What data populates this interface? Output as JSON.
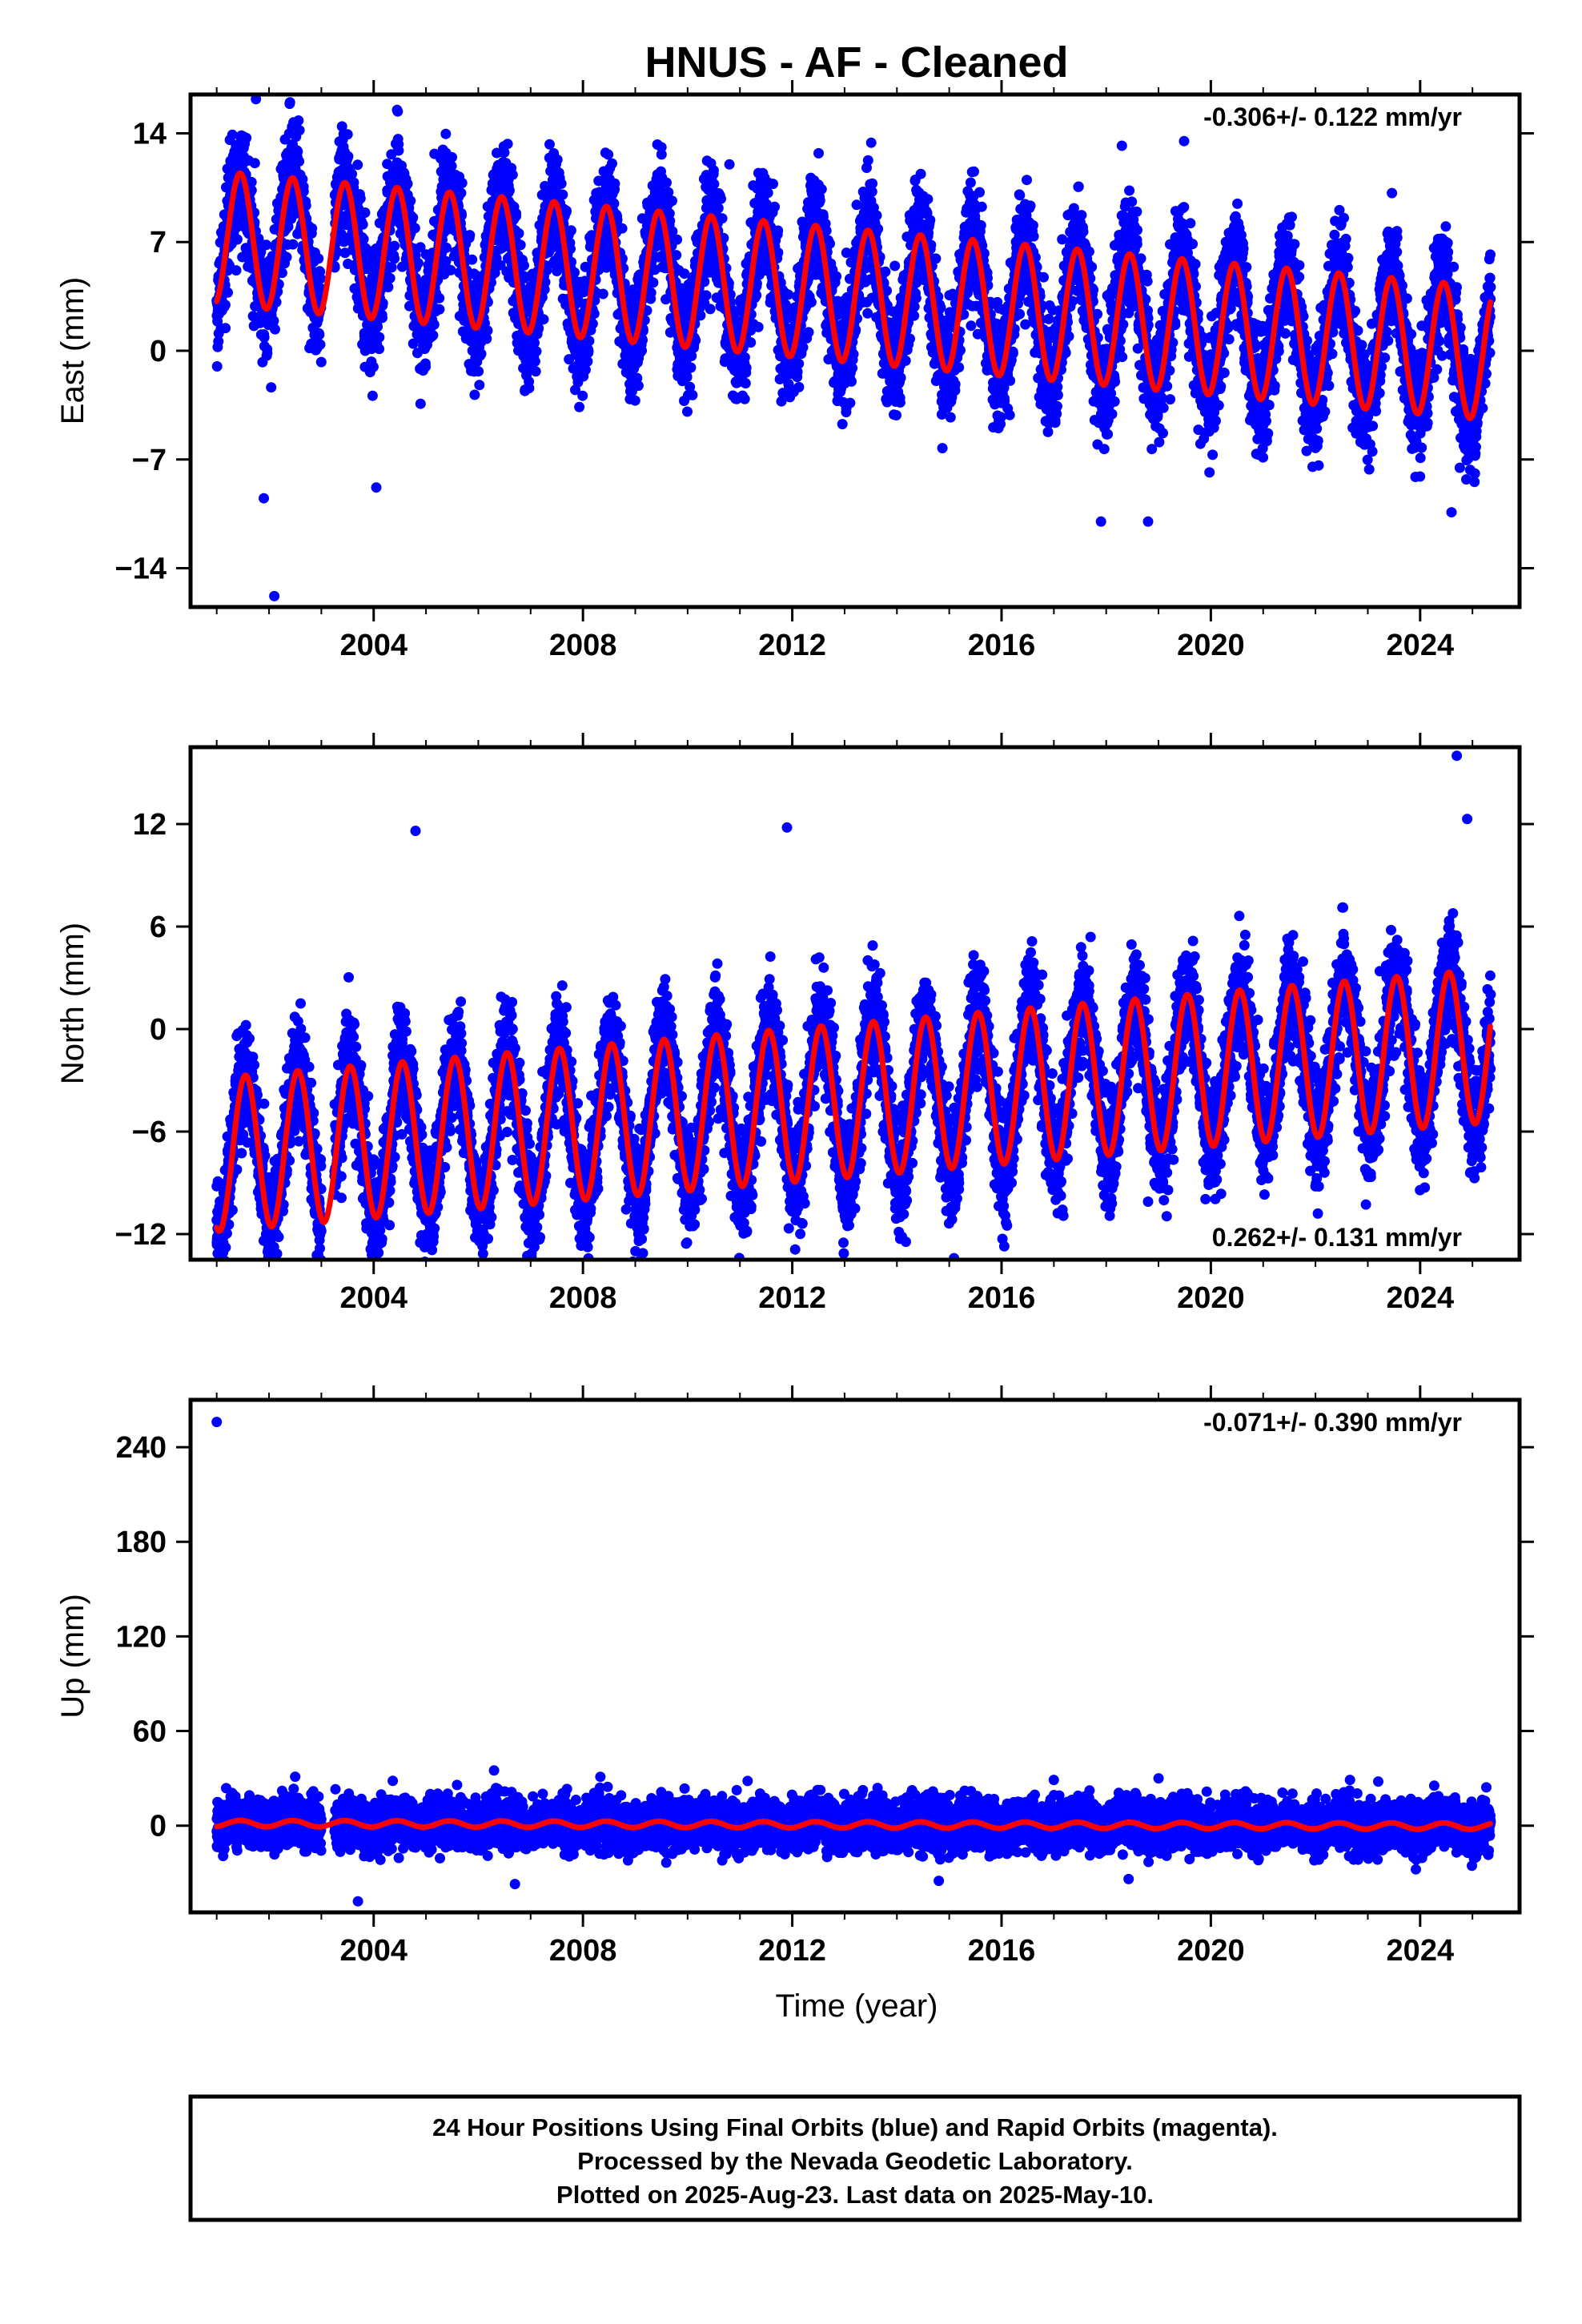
{
  "title": "HNUS  - AF - Cleaned",
  "colors": {
    "data_points": "#0000ff",
    "model": "#ff0000",
    "frame": "#000000"
  },
  "chart_data": [
    {
      "type": "scatter",
      "panel": "east",
      "ylabel": "East (mm)",
      "xlabel": "",
      "xlim": [
        2000.5,
        2025.9
      ],
      "ylim": [
        -16.5,
        16.5
      ],
      "yticks": [
        "14",
        "7",
        "0",
        "−7",
        "−14"
      ],
      "ytick_values": [
        14,
        7,
        0,
        -7,
        -14
      ],
      "xticks": [
        "2004",
        "2008",
        "2012",
        "2016",
        "2020",
        "2024"
      ],
      "xtick_values": [
        2004,
        2008,
        2012,
        2016,
        2020,
        2024
      ],
      "rate_label": "-0.306+/- 0.122 mm/yr",
      "rate_position": "top-right",
      "series": [
        {
          "kind": "points",
          "approx_model": {
            "start": 2001.0,
            "end": 2025.35,
            "offset": 3.6,
            "trend_per_yr": -0.306,
            "annual_amplitude": 4.3,
            "annual_peak": 0.45,
            "noise_sd": 1.8
          },
          "outliers": [
            [
              2001.75,
              16.2
            ],
            [
              2002.4,
              16.0
            ],
            [
              2002.1,
              -15.8
            ],
            [
              2001.9,
              -9.5
            ],
            [
              2004.05,
              -8.8
            ],
            [
              2009.5,
              13.1
            ],
            [
              2010.8,
              12.0
            ],
            [
              2018.3,
              13.2
            ],
            [
              2017.9,
              -11.0
            ],
            [
              2018.8,
              -11.0
            ],
            [
              2024.6,
              -10.4
            ]
          ]
        },
        {
          "kind": "line",
          "approx_model": {
            "start": 2001.0,
            "end": 2025.35,
            "offset": 3.6,
            "trend_per_yr": -0.306,
            "annual_amplitude": 4.3,
            "annual_peak": 0.45
          }
        }
      ]
    },
    {
      "type": "scatter",
      "panel": "north",
      "ylabel": "North (mm)",
      "xlabel": "",
      "xlim": [
        2000.5,
        2025.9
      ],
      "ylim": [
        -13.5,
        16.5
      ],
      "yticks": [
        "12",
        "6",
        "0",
        "−6",
        "−12"
      ],
      "ytick_values": [
        12,
        6,
        0,
        -6,
        -12
      ],
      "xticks": [
        "2004",
        "2008",
        "2012",
        "2016",
        "2020",
        "2024"
      ],
      "xtick_values": [
        2004,
        2008,
        2012,
        2016,
        2020,
        2024
      ],
      "rate_label": "0.262+/- 0.131 mm/yr",
      "rate_position": "bottom-right",
      "series": [
        {
          "kind": "points",
          "approx_model": {
            "start": 2001.0,
            "end": 2025.35,
            "offset": -4.2,
            "trend_per_yr": 0.262,
            "annual_amplitude": 4.5,
            "annual_peak": 0.55,
            "noise_sd": 1.6
          },
          "outliers": [
            [
              2024.7,
              16.0
            ],
            [
              2024.9,
              12.3
            ],
            [
              2011.9,
              11.8
            ],
            [
              2004.8,
              11.6
            ],
            [
              2018.1,
              -9.3
            ],
            [
              2018.8,
              -10.1
            ],
            [
              2013.2,
              -10.5
            ],
            [
              2004.0,
              -12.3
            ],
            [
              2001.0,
              -9.2
            ]
          ]
        },
        {
          "kind": "line",
          "approx_model": {
            "start": 2001.0,
            "end": 2025.35,
            "offset": -4.2,
            "trend_per_yr": 0.262,
            "annual_amplitude": 4.5,
            "annual_peak": 0.55
          }
        }
      ]
    },
    {
      "type": "scatter",
      "panel": "up",
      "ylabel": "Up (mm)",
      "xlabel": "Time (year)",
      "xlim": [
        2000.5,
        2025.9
      ],
      "ylim": [
        -55,
        270
      ],
      "yticks": [
        "240",
        "180",
        "120",
        "60",
        "0"
      ],
      "ytick_values": [
        240,
        180,
        120,
        60,
        0
      ],
      "xticks": [
        "2004",
        "2008",
        "2012",
        "2016",
        "2020",
        "2024"
      ],
      "xtick_values": [
        2004,
        2008,
        2012,
        2016,
        2020,
        2024
      ],
      "rate_label": "-0.071+/- 0.390 mm/yr",
      "rate_position": "top-right",
      "series": [
        {
          "kind": "points",
          "approx_model": {
            "start": 2001.0,
            "end": 2025.35,
            "offset": 0.5,
            "trend_per_yr": -0.071,
            "annual_amplitude": 2.0,
            "annual_peak": 0.45,
            "noise_sd": 7.5
          },
          "outliers": [
            [
              2001.0,
              256.0
            ],
            [
              2006.3,
              35.0
            ],
            [
              2002.5,
              31.0
            ],
            [
              2017.0,
              29.0
            ],
            [
              2019.0,
              30.0
            ],
            [
              2023.2,
              28.0
            ],
            [
              2003.7,
              -48.0
            ],
            [
              2006.7,
              -37.0
            ],
            [
              2014.8,
              -35.0
            ]
          ]
        },
        {
          "kind": "line",
          "approx_model": {
            "start": 2001.0,
            "end": 2025.35,
            "offset": 0.5,
            "trend_per_yr": -0.071,
            "annual_amplitude": 2.0,
            "annual_peak": 0.45
          }
        }
      ]
    }
  ],
  "footer": {
    "line1": "24 Hour Positions Using Final Orbits (blue) and Rapid Orbits (magenta).",
    "line2": "Processed by the Nevada Geodetic Laboratory.",
    "line3": "Plotted on 2025-Aug-23. Last data on 2025-May-10."
  }
}
